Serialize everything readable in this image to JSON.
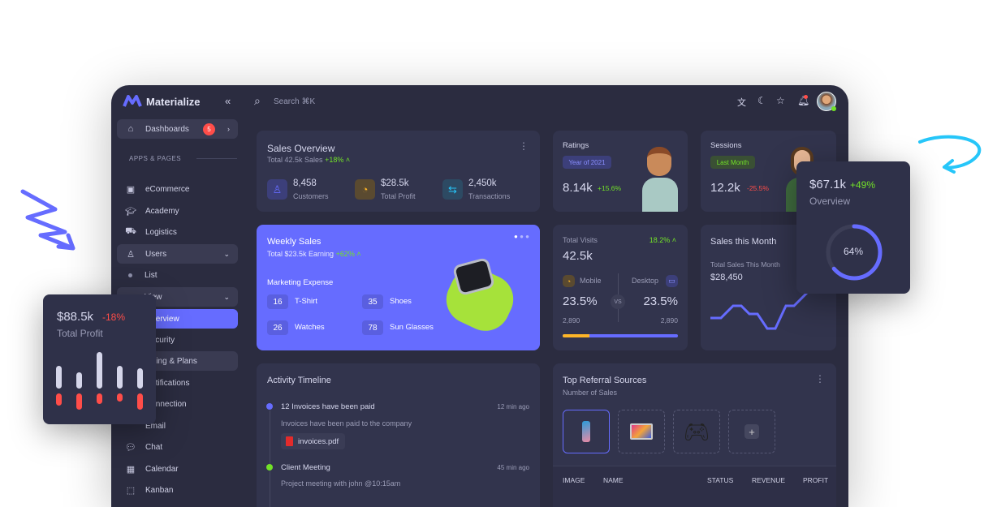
{
  "app": {
    "name": "Materialize",
    "search_placeholder": "Search ⌘K"
  },
  "sidebar": {
    "dashboards": {
      "label": "Dashboards",
      "badge": "5"
    },
    "section": "APPS & PAGES",
    "items": [
      {
        "label": "eCommerce",
        "icon": "shopping-bag-icon"
      },
      {
        "label": "Academy",
        "icon": "graduation-cap-icon"
      },
      {
        "label": "Logistics",
        "icon": "truck-icon"
      },
      {
        "label": "Users",
        "icon": "user-icon"
      },
      {
        "label": "List"
      },
      {
        "label": "View"
      },
      {
        "label": "Overview"
      },
      {
        "label": "Security"
      },
      {
        "label": "Billing & Plans"
      },
      {
        "label": "Notifications"
      },
      {
        "label": "Connection"
      },
      {
        "label": "Email"
      },
      {
        "label": "Chat",
        "icon": "chat-icon"
      },
      {
        "label": "Calendar",
        "icon": "calendar-icon"
      },
      {
        "label": "Kanban",
        "icon": "kanban-icon"
      }
    ]
  },
  "sales_overview": {
    "title": "Sales Overview",
    "subtitle": "Total 42.5k Sales",
    "change": "+18%",
    "stats": [
      {
        "value": "8,458",
        "label": "Customers",
        "color": "#666cff"
      },
      {
        "value": "$28.5k",
        "label": "Total Profit",
        "color": "#fdb528"
      },
      {
        "value": "2,450k",
        "label": "Transactions",
        "color": "#26c6f9"
      }
    ]
  },
  "ratings": {
    "title": "Ratings",
    "chip": "Year of 2021",
    "value": "8.14k",
    "change": "+15.6%"
  },
  "sessions": {
    "title": "Sessions",
    "chip": "Last Month",
    "value": "12.2k",
    "change": "-25.5%"
  },
  "weekly_sales": {
    "title": "Weekly Sales",
    "subtitle": "Total $23.5k Earning",
    "change": "+62%",
    "section": "Marketing Expense",
    "items": [
      {
        "value": "16",
        "label": "T-Shirt"
      },
      {
        "value": "35",
        "label": "Shoes"
      },
      {
        "value": "26",
        "label": "Watches"
      },
      {
        "value": "78",
        "label": "Sun Glasses"
      }
    ]
  },
  "total_visits": {
    "title": "Total Visits",
    "change": "18.2%",
    "value": "42.5k",
    "mobile": {
      "label": "Mobile",
      "percent": "23.5%",
      "count": "2,890"
    },
    "desktop": {
      "label": "Desktop",
      "percent": "23.5%",
      "count": "2,890"
    },
    "vs": "VS",
    "mobile_share": 0.23
  },
  "sales_month": {
    "title": "Sales this Month",
    "subtitle": "Total Sales This Month",
    "value": "$28,450"
  },
  "activity": {
    "title": "Activity Timeline",
    "events": [
      {
        "title": "12 Invoices have been paid",
        "time": "12 min ago",
        "desc": "Invoices have been paid to the company",
        "file": "invoices.pdf",
        "color": "#666cff"
      },
      {
        "title": "Client Meeting",
        "time": "45 min ago",
        "desc": "Project meeting with john @10:15am",
        "color": "#72e128"
      }
    ]
  },
  "referral": {
    "title": "Top Referral Sources",
    "subtitle": "Number of Sales",
    "columns": [
      "IMAGE",
      "NAME",
      "STATUS",
      "REVENUE",
      "PROFIT"
    ]
  },
  "float_profit": {
    "value": "$88.5k",
    "change": "-18%",
    "label": "Total Profit"
  },
  "float_overview": {
    "value": "$67.1k",
    "change": "+49%",
    "label": "Overview",
    "percent": 64,
    "percent_label": "64%"
  }
}
